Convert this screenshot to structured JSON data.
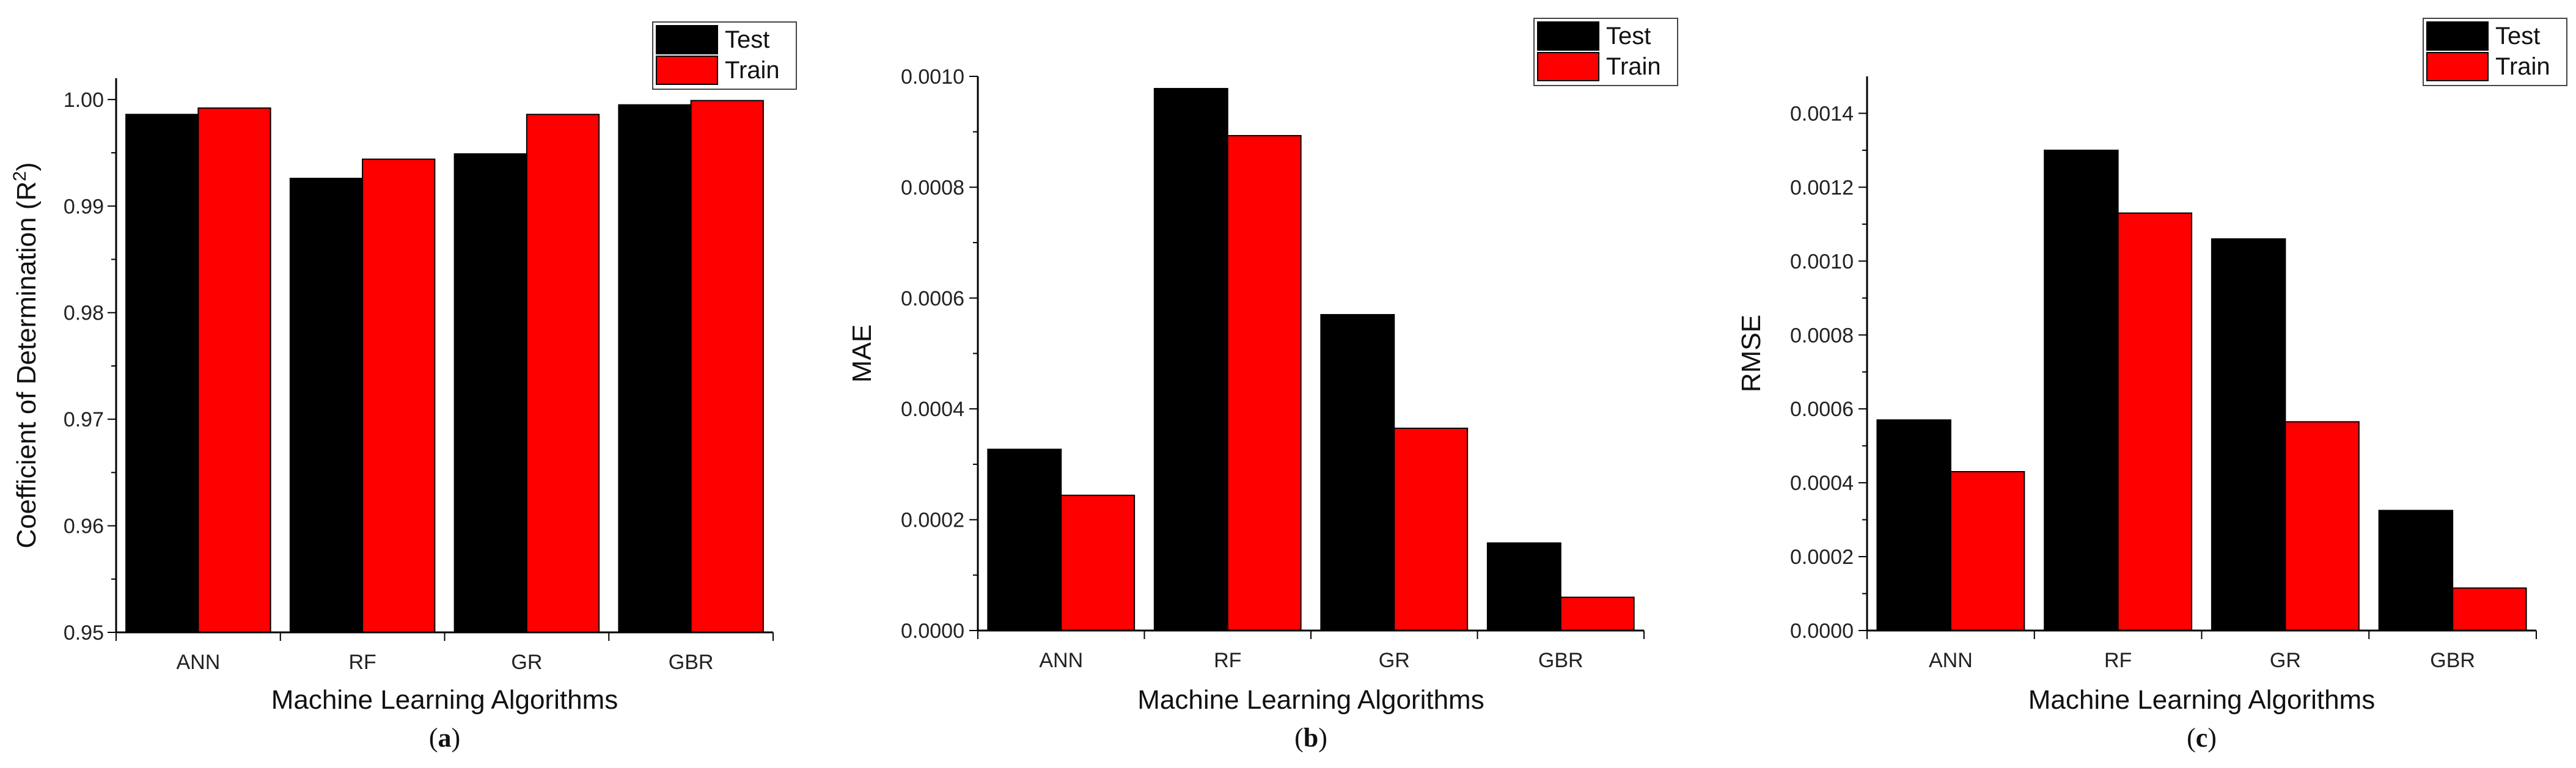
{
  "chart_data": [
    {
      "type": "bar",
      "categories": [
        "ANN",
        "RF",
        "GR",
        "GBR"
      ],
      "series": [
        {
          "name": "Test",
          "color": "#000000",
          "values": [
            0.9986,
            0.9926,
            0.9949,
            0.9995
          ]
        },
        {
          "name": "Train",
          "color": "#ff0000",
          "values": [
            0.9992,
            0.9944,
            0.9986,
            0.9999
          ]
        }
      ],
      "xlabel": "Machine Learning Algorithms",
      "ylabel_main": "Coefficient of Determination (R",
      "ylabel_sup": "2",
      "ylabel_end": ")",
      "ylim": [
        0.95,
        1.002
      ],
      "yticks": [
        "0.95",
        "0.96",
        "0.97",
        "0.98",
        "0.99",
        "1.00"
      ],
      "caption_open": "(",
      "caption_letter": "a",
      "caption_close": ")",
      "legend": "top-right",
      "grid": false
    },
    {
      "type": "bar",
      "categories": [
        "ANN",
        "RF",
        "GR",
        "GBR"
      ],
      "series": [
        {
          "name": "Test",
          "color": "#000000",
          "values": [
            0.000327,
            0.000978,
            0.00057,
            0.000158
          ]
        },
        {
          "name": "Train",
          "color": "#ff0000",
          "values": [
            0.000244,
            0.000893,
            0.000365,
            6e-05
          ]
        }
      ],
      "xlabel": "Machine Learning Algorithms",
      "ylabel": "MAE",
      "ylim": [
        0,
        0.001
      ],
      "yticks": [
        "0.0000",
        "0.0002",
        "0.0004",
        "0.0006",
        "0.0008",
        "0.0010"
      ],
      "caption_open": "(",
      "caption_letter": "b",
      "caption_close": ")",
      "legend": "top-right",
      "grid": false
    },
    {
      "type": "bar",
      "categories": [
        "ANN",
        "RF",
        "GR",
        "GBR"
      ],
      "series": [
        {
          "name": "Test",
          "color": "#000000",
          "values": [
            0.00057,
            0.0013,
            0.00106,
            0.000325
          ]
        },
        {
          "name": "Train",
          "color": "#ff0000",
          "values": [
            0.00043,
            0.00113,
            0.000565,
            0.000115
          ]
        }
      ],
      "xlabel": "Machine Learning Algorithms",
      "ylabel": "RMSE",
      "ylim": [
        0,
        0.0015
      ],
      "yticks": [
        "0.0000",
        "0.0002",
        "0.0004",
        "0.0006",
        "0.0008",
        "0.0010",
        "0.0012",
        "0.0014"
      ],
      "caption_open": "(",
      "caption_letter": "c",
      "caption_close": ")",
      "legend": "top-right",
      "grid": false
    }
  ]
}
